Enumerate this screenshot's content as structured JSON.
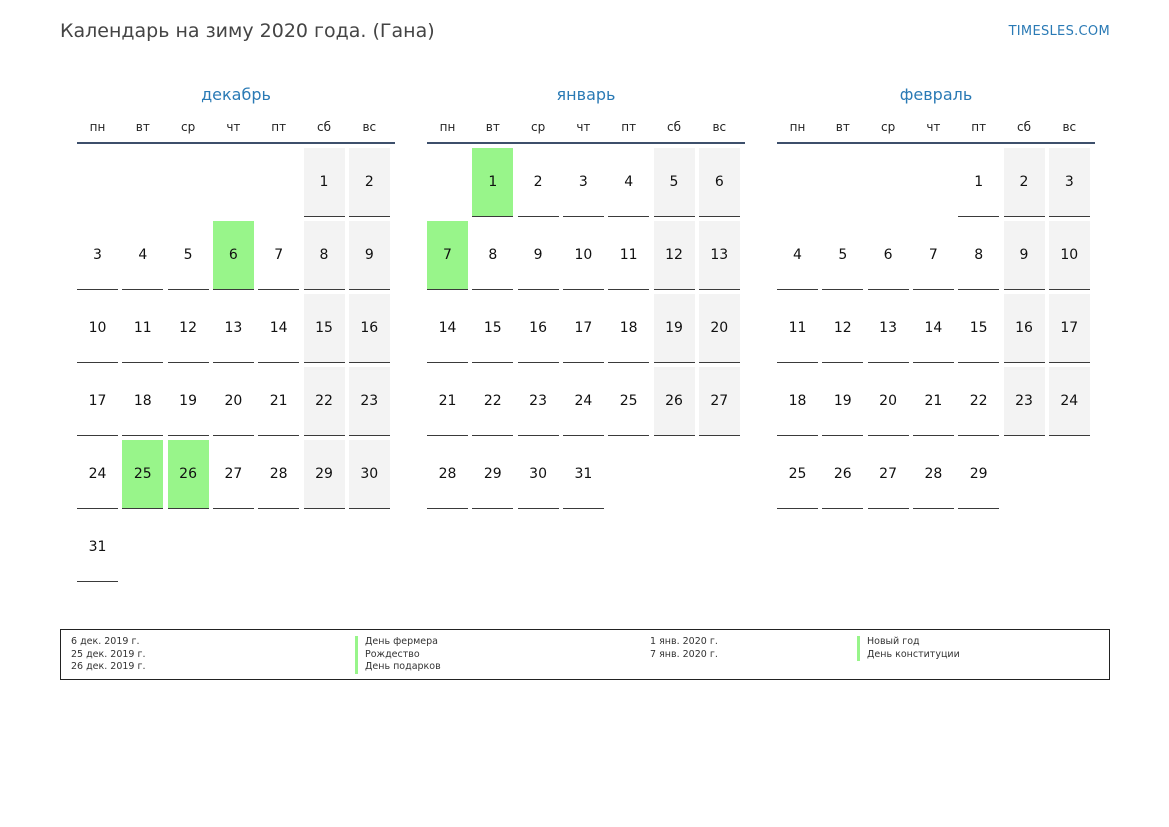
{
  "header": {
    "title": "Календарь на зиму 2020 года. (Гана)",
    "site": "TIMESLES.COM"
  },
  "weekdays": [
    "пн",
    "вт",
    "ср",
    "чт",
    "пт",
    "сб",
    "вс"
  ],
  "colors": {
    "accent": "#2a7ab5",
    "holiday": "#98f58a",
    "weekend": "#f3f3f3"
  },
  "months": [
    {
      "name": "декабрь",
      "start_weekday": 6,
      "days": 31,
      "holidays": [
        6,
        25,
        26
      ]
    },
    {
      "name": "январь",
      "start_weekday": 2,
      "days": 31,
      "holidays": [
        1,
        7
      ]
    },
    {
      "name": "февраль",
      "start_weekday": 5,
      "days": 29,
      "holidays": []
    }
  ],
  "legend": {
    "col1": {
      "dates": [
        "6 дек. 2019 г.",
        "25 дек. 2019 г.",
        "26 дек. 2019 г."
      ],
      "names": [
        "День фермера",
        "Рождество",
        "День подарков"
      ]
    },
    "col2": {
      "dates": [
        "1 янв. 2020 г.",
        "7 янв. 2020 г."
      ],
      "names": [
        "Новый год",
        "День конституции"
      ]
    }
  }
}
